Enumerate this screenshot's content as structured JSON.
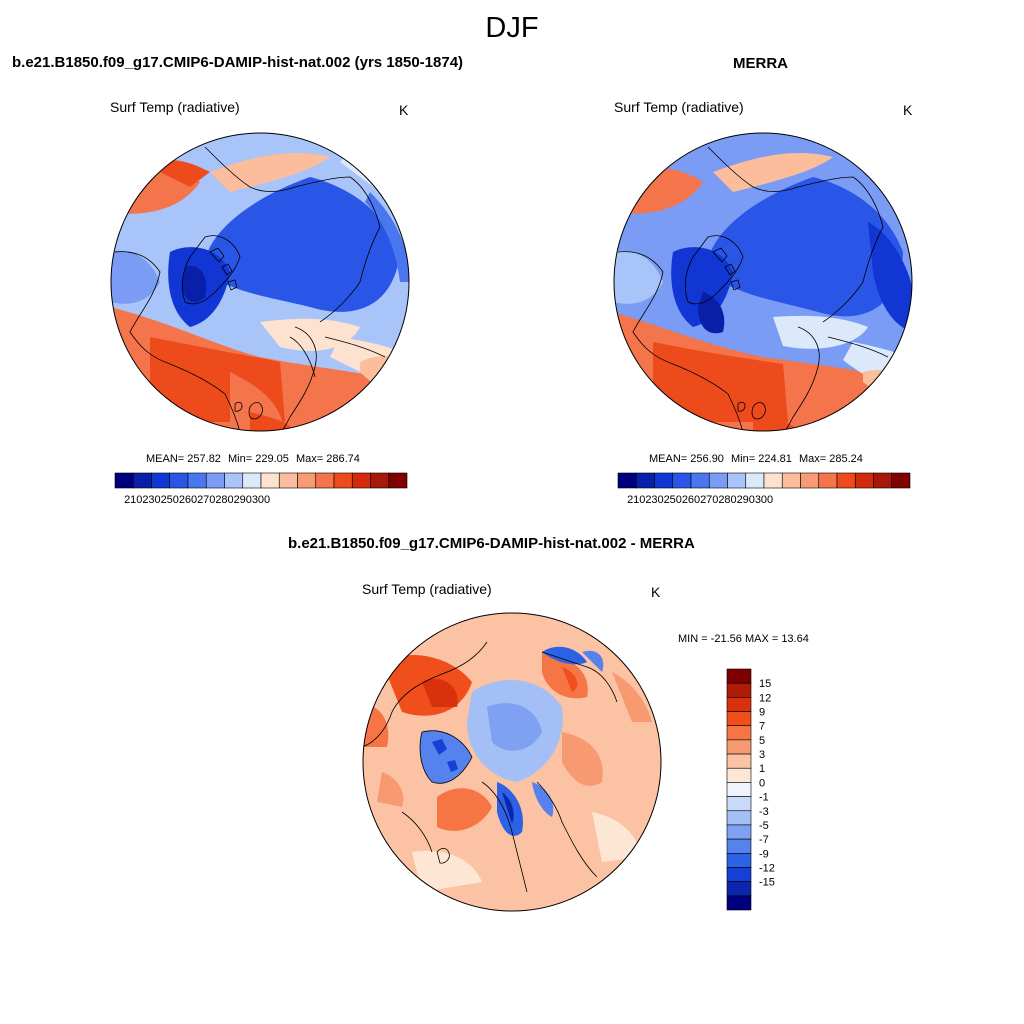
{
  "season": "DJF",
  "colors": {
    "abs_scale": [
      "#00007f",
      "#0a1fa8",
      "#1136d4",
      "#2a56e8",
      "#4a76ef",
      "#7a9cf4",
      "#a9c4f8",
      "#dbe9fb",
      "#fde2cf",
      "#fbbd9c",
      "#f89a74",
      "#f4744b",
      "#ee4b1d",
      "#d42a0c",
      "#a8180a",
      "#7f0000"
    ],
    "diff_scale": [
      "#7f0000",
      "#b01a08",
      "#d9310c",
      "#f04f1c",
      "#f57545",
      "#f79a72",
      "#fbc3a3",
      "#fde6d4",
      "#eef3fc",
      "#c9dbf8",
      "#a3bff5",
      "#7ea1f1",
      "#5582ec",
      "#2e62e6",
      "#1540d6",
      "#0b26ad",
      "#00007f"
    ]
  },
  "panels": [
    {
      "title": "b.e21.B1850.f09_g17.CMIP6-DAMIP-hist-nat.002 (yrs 1850-1874)",
      "variable": "Surf Temp (radiative)",
      "units": "K",
      "mean_label": "MEAN=",
      "mean": "257.82",
      "min_label": "Min=",
      "min": "229.05",
      "max_label": "Max=",
      "max": "286.74",
      "colorbar_ticks": [
        "210",
        "230",
        "250",
        "260",
        "270",
        "280",
        "290",
        "300"
      ]
    },
    {
      "title": "MERRA",
      "variable": "Surf Temp (radiative)",
      "units": "K",
      "mean_label": "MEAN=",
      "mean": "256.90",
      "min_label": "Min=",
      "min": "224.81",
      "max_label": "Max=",
      "max": "285.24",
      "colorbar_ticks": [
        "210",
        "230",
        "250",
        "260",
        "270",
        "280",
        "290",
        "300"
      ]
    }
  ],
  "diff": {
    "title": "b.e21.B1850.f09_g17.CMIP6-DAMIP-hist-nat.002 - MERRA",
    "variable": "Surf Temp (radiative)",
    "units": "K",
    "minmax": "MIN = -21.56 MAX =  13.64",
    "colorbar_ticks": [
      "15",
      "12",
      "9",
      "7",
      "5",
      "3",
      "1",
      "0",
      "-1",
      "-3",
      "-5",
      "-7",
      "-9",
      "-12",
      "-15"
    ]
  }
}
